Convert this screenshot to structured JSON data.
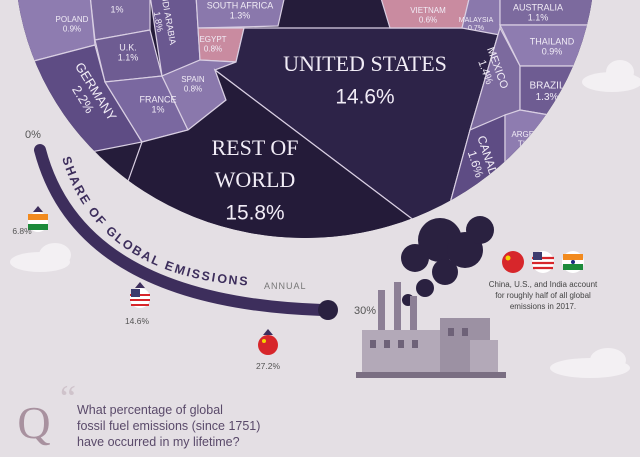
{
  "cells": [
    {
      "name": [
        ""
      ],
      "value": "1%"
    },
    {
      "name": [
        "POLAND"
      ],
      "value": "0.9%"
    },
    {
      "name": [
        "U.K."
      ],
      "value": "1.1%"
    },
    {
      "name": [
        "GERMANY"
      ],
      "value": "2.2%"
    },
    {
      "name": [
        "FRANCE"
      ],
      "value": "1%"
    },
    {
      "name": [
        "UDI ARABIA"
      ],
      "value": "1.8%"
    },
    {
      "name": [
        "SOUTH AFRICA"
      ],
      "value": "1.3%"
    },
    {
      "name": [
        "EGYPT"
      ],
      "value": "0.8%"
    },
    {
      "name": [
        "SPAIN"
      ],
      "value": "0.8%"
    },
    {
      "name": [
        "UNITED STATES"
      ],
      "value": "14.6%"
    },
    {
      "name": [
        "REST OF",
        "WORLD"
      ],
      "value": "15.8%"
    },
    {
      "name": [
        "VIETNAM"
      ],
      "value": "0.6%"
    },
    {
      "name": [
        "MALAYSIA"
      ],
      "value": "0.7%"
    },
    {
      "name": [
        "AUSTRALIA"
      ],
      "value": "1.1%"
    },
    {
      "name": [
        "THAILAND"
      ],
      "value": "0.9%"
    },
    {
      "name": [
        "MEXICO"
      ],
      "value": "1.4%"
    },
    {
      "name": [
        "BRAZIL"
      ],
      "value": "1.3%"
    },
    {
      "name": [
        "CANADA"
      ],
      "value": "1.6%"
    },
    {
      "name": [
        "ARGEN-",
        "TINA"
      ],
      "value": "0.6%"
    }
  ],
  "gauge": {
    "min": "0%",
    "max": "30%",
    "title": "SHARE OF GLOBAL EMISSIONS",
    "subtitle": "ANNUAL",
    "markers": [
      {
        "label": "6.8%"
      },
      {
        "label": "14.6%"
      },
      {
        "label": "27.2%"
      }
    ]
  },
  "note": [
    "China, U.S., and India account",
    "for roughly half of all global",
    "emissions in 2017."
  ],
  "question": {
    "letter": "Q",
    "lines": [
      "What percentage of global",
      "fossil fuel emissions (since 1751)",
      "have occurred in my lifetime?"
    ]
  }
}
